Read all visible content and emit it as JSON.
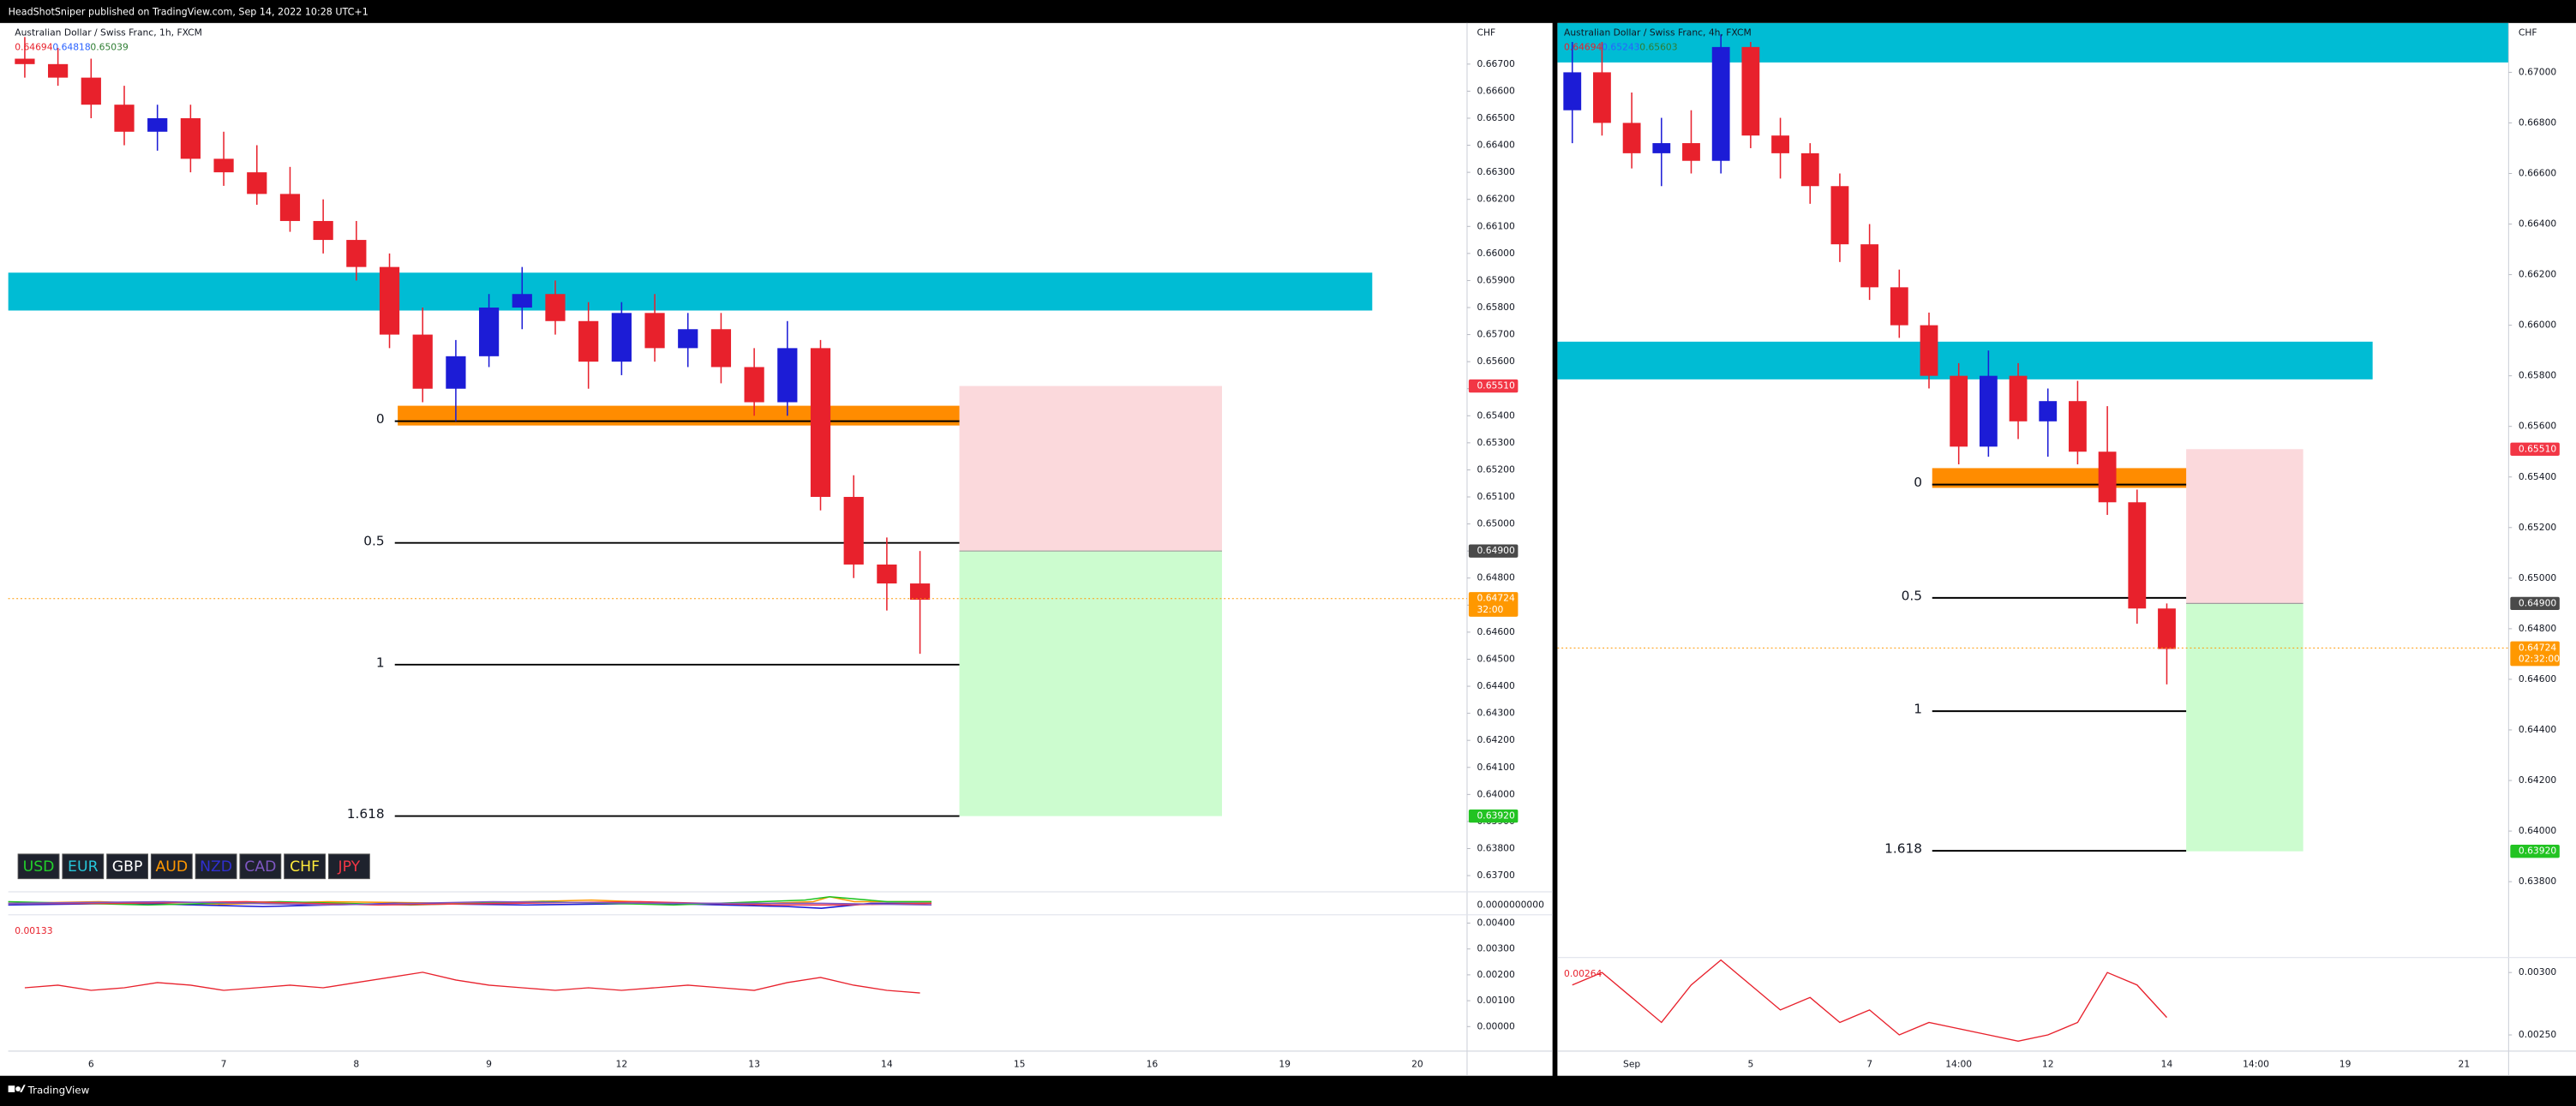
{
  "header": {
    "text": "HeadShotSniper published on TradingView.com, Sep 14, 2022 10:28 UTC+1"
  },
  "footer": {
    "brand": "TradingView"
  },
  "panes": [
    {
      "symbol": "Australian Dollar / Swiss Franc, 1h, FXCM",
      "legend": [
        {
          "text": "0.64694",
          "color": "#e8212c"
        },
        {
          "text": "0.64818",
          "color": "#2962ff"
        },
        {
          "text": "0.65039",
          "color": "#2e7d32"
        }
      ],
      "currency": "CHF",
      "ylim": [
        0.6364,
        0.66852
      ],
      "yticks": [
        {
          "value": 0.667,
          "label": "0.66700"
        },
        {
          "value": 0.666,
          "label": "0.66600"
        },
        {
          "value": 0.665,
          "label": "0.66500"
        },
        {
          "value": 0.664,
          "label": "0.66400"
        },
        {
          "value": 0.663,
          "label": "0.66300"
        },
        {
          "value": 0.662,
          "label": "0.66200"
        },
        {
          "value": 0.661,
          "label": "0.66100"
        },
        {
          "value": 0.66,
          "label": "0.66000"
        },
        {
          "value": 0.659,
          "label": "0.65900"
        },
        {
          "value": 0.658,
          "label": "0.65800"
        },
        {
          "value": 0.657,
          "label": "0.65700"
        },
        {
          "value": 0.656,
          "label": "0.65600"
        },
        {
          "value": 0.655,
          "label": "0.65500"
        },
        {
          "value": 0.654,
          "label": "0.65400"
        },
        {
          "value": 0.653,
          "label": "0.65300"
        },
        {
          "value": 0.652,
          "label": "0.65200"
        },
        {
          "value": 0.651,
          "label": "0.65100"
        },
        {
          "value": 0.65,
          "label": "0.65000"
        },
        {
          "value": 0.649,
          "label": "0.64900"
        },
        {
          "value": 0.648,
          "label": "0.64800"
        },
        {
          "value": 0.647,
          "label": "0.64700"
        },
        {
          "value": 0.646,
          "label": "0.64600"
        },
        {
          "value": 0.645,
          "label": "0.64500"
        },
        {
          "value": 0.644,
          "label": "0.64400"
        },
        {
          "value": 0.643,
          "label": "0.64300"
        },
        {
          "value": 0.642,
          "label": "0.64200"
        },
        {
          "value": 0.641,
          "label": "0.64100"
        },
        {
          "value": 0.64,
          "label": "0.64000"
        },
        {
          "value": 0.639,
          "label": "0.63900"
        },
        {
          "value": 0.638,
          "label": "0.63800"
        },
        {
          "value": 0.637,
          "label": "0.63700"
        }
      ],
      "categories": [
        null,
        null,
        "6",
        null,
        null,
        null,
        "7",
        null,
        null,
        null,
        "8",
        null,
        null,
        null,
        "9",
        null,
        null,
        null,
        "12",
        null,
        null,
        null,
        "13",
        null,
        null,
        null,
        "14",
        null,
        null,
        null,
        "15",
        null,
        null,
        null,
        "16",
        null,
        null,
        null,
        "19",
        null,
        null,
        null,
        "20",
        null
      ],
      "up_color": "#1c1cd6",
      "down_color": "#e8212c",
      "candles": {
        "open": [
          0.6672,
          0.667,
          0.6665,
          0.6655,
          0.6645,
          0.665,
          0.6635,
          0.663,
          0.6622,
          0.6612,
          0.6605,
          0.6595,
          0.657,
          0.655,
          0.6562,
          0.658,
          0.6585,
          0.6575,
          0.656,
          0.6578,
          0.6565,
          0.6572,
          0.6558,
          0.6545,
          0.6565,
          0.651,
          0.6485,
          0.6478,
          null,
          null,
          null,
          null,
          null,
          null,
          null,
          null,
          null,
          null,
          null,
          null,
          null,
          null,
          null,
          null
        ],
        "high": [
          0.668,
          0.6676,
          0.6672,
          0.6662,
          0.6655,
          0.6655,
          0.6645,
          0.664,
          0.6632,
          0.662,
          0.6612,
          0.66,
          0.658,
          0.6568,
          0.6585,
          0.6595,
          0.659,
          0.6582,
          0.6582,
          0.6585,
          0.6578,
          0.6578,
          0.6565,
          0.6575,
          0.6568,
          0.6518,
          0.6495,
          0.649,
          null,
          null,
          null,
          null,
          null,
          null,
          null,
          null,
          null,
          null,
          null,
          null,
          null,
          null,
          null,
          null
        ],
        "low": [
          0.6665,
          0.6662,
          0.665,
          0.664,
          0.6638,
          0.663,
          0.6625,
          0.6618,
          0.6608,
          0.66,
          0.659,
          0.6565,
          0.6545,
          0.6538,
          0.6558,
          0.6572,
          0.657,
          0.655,
          0.6555,
          0.656,
          0.6558,
          0.6552,
          0.654,
          0.654,
          0.6505,
          0.648,
          0.6468,
          0.6452,
          null,
          null,
          null,
          null,
          null,
          null,
          null,
          null,
          null,
          null,
          null,
          null,
          null,
          null,
          null,
          null
        ],
        "close": [
          0.667,
          0.6665,
          0.6655,
          0.6645,
          0.665,
          0.6635,
          0.663,
          0.6622,
          0.6612,
          0.6605,
          0.6595,
          0.657,
          0.655,
          0.6562,
          0.658,
          0.6585,
          0.6575,
          0.656,
          0.6578,
          0.6565,
          0.6572,
          0.6558,
          0.6545,
          0.6565,
          0.651,
          0.6485,
          0.6478,
          0.6472,
          null,
          null,
          null,
          null,
          null,
          null,
          null,
          null,
          null,
          null,
          null,
          null,
          null,
          null,
          null,
          null
        ]
      },
      "zones": [
        {
          "top": 0.65929,
          "bottom": 0.65789,
          "color": "#00bcd4"
        },
        {
          "top": 0.65437,
          "bottom": 0.65364,
          "color": "#ff8c00"
        }
      ],
      "fib": {
        "levels": [
          0,
          0.5,
          1,
          1.618
        ],
        "prices": [
          0.6538,
          0.6493,
          0.6448,
          0.6392
        ]
      },
      "risk": {
        "loss_color": "#fbd9dc",
        "profit_color": "#ccfccf"
      },
      "badges": {
        "values": [
          0.6551,
          0.649,
          0.64724,
          0.6392
        ],
        "value_labels": [
          "0.65510",
          "0.64900",
          "0.64724",
          "0.63920"
        ],
        "colors": [
          "#f23645",
          "#4a4a4a",
          "#ff9800",
          "#22c322"
        ]
      },
      "timer": "32:00",
      "currencies": [
        {
          "text": "USD",
          "color": "#22d02a"
        },
        {
          "text": "EUR",
          "color": "#26c6da"
        },
        {
          "text": "GBP",
          "color": "#ffffff"
        },
        {
          "text": "AUD",
          "color": "#ff9800"
        },
        {
          "text": "NZD",
          "color": "#2f2fd0"
        },
        {
          "text": "CAD",
          "color": "#7e57c2"
        },
        {
          "text": "CHF",
          "color": "#ffeb3b"
        },
        {
          "text": "JPY",
          "color": "#f23645"
        }
      ],
      "strength_label": "0.0000000000",
      "oscillator": {
        "label": "0.00133",
        "color": "#e8212c",
        "ylim": [
          -0.00095,
          0.00432
        ],
        "yticks": [
          {
            "value": 0.004,
            "label": "0.00400"
          },
          {
            "value": 0.003,
            "label": "0.00300"
          },
          {
            "value": 0.002,
            "label": "0.00200"
          },
          {
            "value": 0.001,
            "label": "0.00100"
          },
          {
            "value": 0,
            "label": "0.00000"
          }
        ],
        "values": [
          0.0015,
          0.0016,
          0.0014,
          0.0015,
          0.0017,
          0.0016,
          0.0014,
          0.0015,
          0.0016,
          0.0015,
          0.0017,
          0.0019,
          0.0021,
          0.0018,
          0.0016,
          0.0015,
          0.0014,
          0.0015,
          0.0014,
          0.0015,
          0.0016,
          0.0015,
          0.0014,
          0.0017,
          0.0019,
          0.0016,
          0.0014,
          0.0013,
          null,
          null,
          null,
          null,
          null,
          null,
          null,
          null,
          null,
          null,
          null,
          null,
          null,
          null,
          null,
          null
        ]
      }
    },
    {
      "symbol": "Australian Dollar / Swiss Franc, 4h, FXCM",
      "legend": [
        {
          "text": "0.64694",
          "color": "#e8212c"
        },
        {
          "text": "0.65243",
          "color": "#2962ff"
        },
        {
          "text": "0.65603",
          "color": "#2e7d32"
        }
      ],
      "currency": "CHF",
      "ylim": [
        0.635,
        0.67195
      ],
      "yticks": [
        {
          "value": 0.67,
          "label": "0.67000"
        },
        {
          "value": 0.668,
          "label": "0.66800"
        },
        {
          "value": 0.666,
          "label": "0.66600"
        },
        {
          "value": 0.664,
          "label": "0.66400"
        },
        {
          "value": 0.662,
          "label": "0.66200"
        },
        {
          "value": 0.66,
          "label": "0.66000"
        },
        {
          "value": 0.658,
          "label": "0.65800"
        },
        {
          "value": 0.656,
          "label": "0.65600"
        },
        {
          "value": 0.654,
          "label": "0.65400"
        },
        {
          "value": 0.652,
          "label": "0.65200"
        },
        {
          "value": 0.65,
          "label": "0.65000"
        },
        {
          "value": 0.648,
          "label": "0.64800"
        },
        {
          "value": 0.646,
          "label": "0.64600"
        },
        {
          "value": 0.644,
          "label": "0.64400"
        },
        {
          "value": 0.642,
          "label": "0.64200"
        },
        {
          "value": 0.64,
          "label": "0.64000"
        },
        {
          "value": 0.638,
          "label": "0.63800"
        }
      ],
      "categories": [
        null,
        null,
        "Sep",
        null,
        null,
        null,
        "5",
        null,
        null,
        null,
        "7",
        null,
        null,
        "14:00",
        null,
        null,
        "12",
        null,
        null,
        null,
        "14",
        null,
        null,
        "14:00",
        null,
        null,
        "19",
        null,
        null,
        null,
        "21",
        null
      ],
      "up_color": "#1c1cd6",
      "down_color": "#e8212c",
      "candles": {
        "open": [
          0.6685,
          0.67,
          0.668,
          0.6668,
          0.6672,
          0.6665,
          0.671,
          0.6675,
          0.6668,
          0.6655,
          0.6632,
          0.6615,
          0.66,
          0.658,
          0.6552,
          0.658,
          0.6562,
          0.657,
          0.655,
          0.653,
          0.6488,
          null,
          null,
          null,
          null,
          null,
          null,
          null,
          null,
          null,
          null,
          null
        ],
        "high": [
          0.6712,
          0.6712,
          0.6692,
          0.6682,
          0.6685,
          0.6715,
          0.6712,
          0.6682,
          0.6672,
          0.666,
          0.664,
          0.6622,
          0.6605,
          0.6585,
          0.659,
          0.6585,
          0.6575,
          0.6578,
          0.6568,
          0.6535,
          0.649,
          null,
          null,
          null,
          null,
          null,
          null,
          null,
          null,
          null,
          null,
          null
        ],
        "low": [
          0.6672,
          0.6675,
          0.6662,
          0.6655,
          0.666,
          0.666,
          0.667,
          0.6658,
          0.6648,
          0.6625,
          0.661,
          0.6595,
          0.6575,
          0.6545,
          0.6548,
          0.6555,
          0.6548,
          0.6545,
          0.6525,
          0.6482,
          0.6458,
          null,
          null,
          null,
          null,
          null,
          null,
          null,
          null,
          null,
          null,
          null
        ],
        "close": [
          0.67,
          0.668,
          0.6668,
          0.6672,
          0.6665,
          0.671,
          0.6675,
          0.6668,
          0.6655,
          0.6632,
          0.6615,
          0.66,
          0.658,
          0.6552,
          0.658,
          0.6562,
          0.657,
          0.655,
          0.653,
          0.6488,
          0.6472,
          null,
          null,
          null,
          null,
          null,
          null,
          null,
          null,
          null,
          null,
          null
        ]
      },
      "zones": [
        {
          "top": 0.6725,
          "bottom": 0.67039,
          "color": "#00bcd4"
        },
        {
          "top": 0.65935,
          "bottom": 0.65786,
          "color": "#00bcd4"
        },
        {
          "top": 0.65435,
          "bottom": 0.65357,
          "color": "#ff8c00"
        }
      ],
      "fib": {
        "levels": [
          0,
          0.5,
          1,
          1.618
        ],
        "prices": [
          0.6537,
          0.64922,
          0.64474,
          0.63922
        ]
      },
      "risk": {
        "loss_color": "#fbd9dc",
        "profit_color": "#ccfccf"
      },
      "badges": {
        "values": [
          0.6551,
          0.649,
          0.64724,
          0.6392
        ],
        "value_labels": [
          "0.65510",
          "0.64900",
          "0.64724",
          "0.63920"
        ],
        "colors": [
          "#f23645",
          "#4a4a4a",
          "#ff9800",
          "#22c322"
        ]
      },
      "timer": "02:32:00",
      "oscillator": {
        "label": "0.00264",
        "color": "#e8212c",
        "ylim": [
          0.00237,
          0.00312
        ],
        "yticks": [
          {
            "value": 0.003,
            "label": "0.00300"
          },
          {
            "value": 0.0025,
            "label": "0.00250"
          }
        ],
        "values": [
          0.0029,
          0.003,
          0.0028,
          0.0026,
          0.0029,
          0.0031,
          0.0029,
          0.0027,
          0.0028,
          0.0026,
          0.0027,
          0.0025,
          0.0026,
          0.00255,
          0.0025,
          0.00245,
          0.0025,
          0.0026,
          0.003,
          0.0029,
          0.00264,
          null,
          null,
          null,
          null,
          null,
          null,
          null,
          null,
          null,
          null,
          null
        ]
      }
    }
  ]
}
